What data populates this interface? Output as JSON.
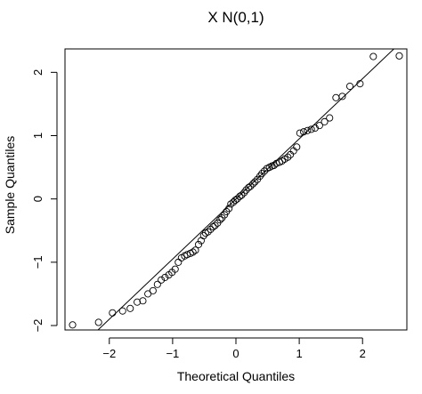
{
  "chart_data": {
    "type": "scatter",
    "title": "X N(0,1)",
    "xlabel": "Theoretical Quantiles",
    "ylabel": "Sample Quantiles",
    "xlim": [
      -2.7,
      2.7
    ],
    "ylim": [
      -2.07,
      2.37
    ],
    "xticks": [
      -2,
      -1,
      0,
      1,
      2
    ],
    "yticks": [
      -2,
      -1,
      0,
      1,
      2
    ],
    "grid": false,
    "reference_line": {
      "slope": 0.95,
      "intercept": 0.0
    },
    "series": [
      {
        "points": [
          [
            -2.58,
            -1.99
          ],
          [
            -2.17,
            -1.95
          ],
          [
            -1.95,
            -1.8
          ],
          [
            -1.79,
            -1.77
          ],
          [
            -1.67,
            -1.73
          ],
          [
            -1.56,
            -1.63
          ],
          [
            -1.47,
            -1.61
          ],
          [
            -1.39,
            -1.5
          ],
          [
            -1.31,
            -1.45
          ],
          [
            -1.24,
            -1.35
          ],
          [
            -1.18,
            -1.28
          ],
          [
            -1.12,
            -1.24
          ],
          [
            -1.06,
            -1.2
          ],
          [
            -1.01,
            -1.16
          ],
          [
            -0.96,
            -1.11
          ],
          [
            -0.91,
            -1.0
          ],
          [
            -0.86,
            -0.93
          ],
          [
            -0.81,
            -0.9
          ],
          [
            -0.77,
            -0.88
          ],
          [
            -0.72,
            -0.86
          ],
          [
            -0.68,
            -0.84
          ],
          [
            -0.64,
            -0.81
          ],
          [
            -0.59,
            -0.72
          ],
          [
            -0.55,
            -0.66
          ],
          [
            -0.51,
            -0.58
          ],
          [
            -0.48,
            -0.54
          ],
          [
            -0.44,
            -0.52
          ],
          [
            -0.4,
            -0.48
          ],
          [
            -0.36,
            -0.44
          ],
          [
            -0.33,
            -0.42
          ],
          [
            -0.29,
            -0.38
          ],
          [
            -0.25,
            -0.33
          ],
          [
            -0.22,
            -0.3
          ],
          [
            -0.18,
            -0.25
          ],
          [
            -0.15,
            -0.2
          ],
          [
            -0.11,
            -0.15
          ],
          [
            -0.08,
            -0.08
          ],
          [
            -0.04,
            -0.05
          ],
          [
            -0.01,
            -0.02
          ],
          [
            0.02,
            0.0
          ],
          [
            0.06,
            0.04
          ],
          [
            0.09,
            0.06
          ],
          [
            0.13,
            0.1
          ],
          [
            0.16,
            0.14
          ],
          [
            0.2,
            0.18
          ],
          [
            0.23,
            0.2
          ],
          [
            0.27,
            0.24
          ],
          [
            0.3,
            0.27
          ],
          [
            0.34,
            0.31
          ],
          [
            0.38,
            0.36
          ],
          [
            0.41,
            0.4
          ],
          [
            0.45,
            0.44
          ],
          [
            0.49,
            0.48
          ],
          [
            0.53,
            0.5
          ],
          [
            0.57,
            0.52
          ],
          [
            0.6,
            0.53
          ],
          [
            0.64,
            0.56
          ],
          [
            0.69,
            0.58
          ],
          [
            0.73,
            0.6
          ],
          [
            0.77,
            0.63
          ],
          [
            0.82,
            0.66
          ],
          [
            0.86,
            0.7
          ],
          [
            0.91,
            0.76
          ],
          [
            0.96,
            0.82
          ],
          [
            1.01,
            1.04
          ],
          [
            1.07,
            1.06
          ],
          [
            1.13,
            1.08
          ],
          [
            1.19,
            1.1
          ],
          [
            1.25,
            1.12
          ],
          [
            1.32,
            1.16
          ],
          [
            1.4,
            1.22
          ],
          [
            1.48,
            1.28
          ],
          [
            1.58,
            1.6
          ],
          [
            1.68,
            1.62
          ],
          [
            1.8,
            1.78
          ],
          [
            1.96,
            1.82
          ],
          [
            2.17,
            2.25
          ],
          [
            2.58,
            2.26
          ]
        ]
      }
    ]
  }
}
